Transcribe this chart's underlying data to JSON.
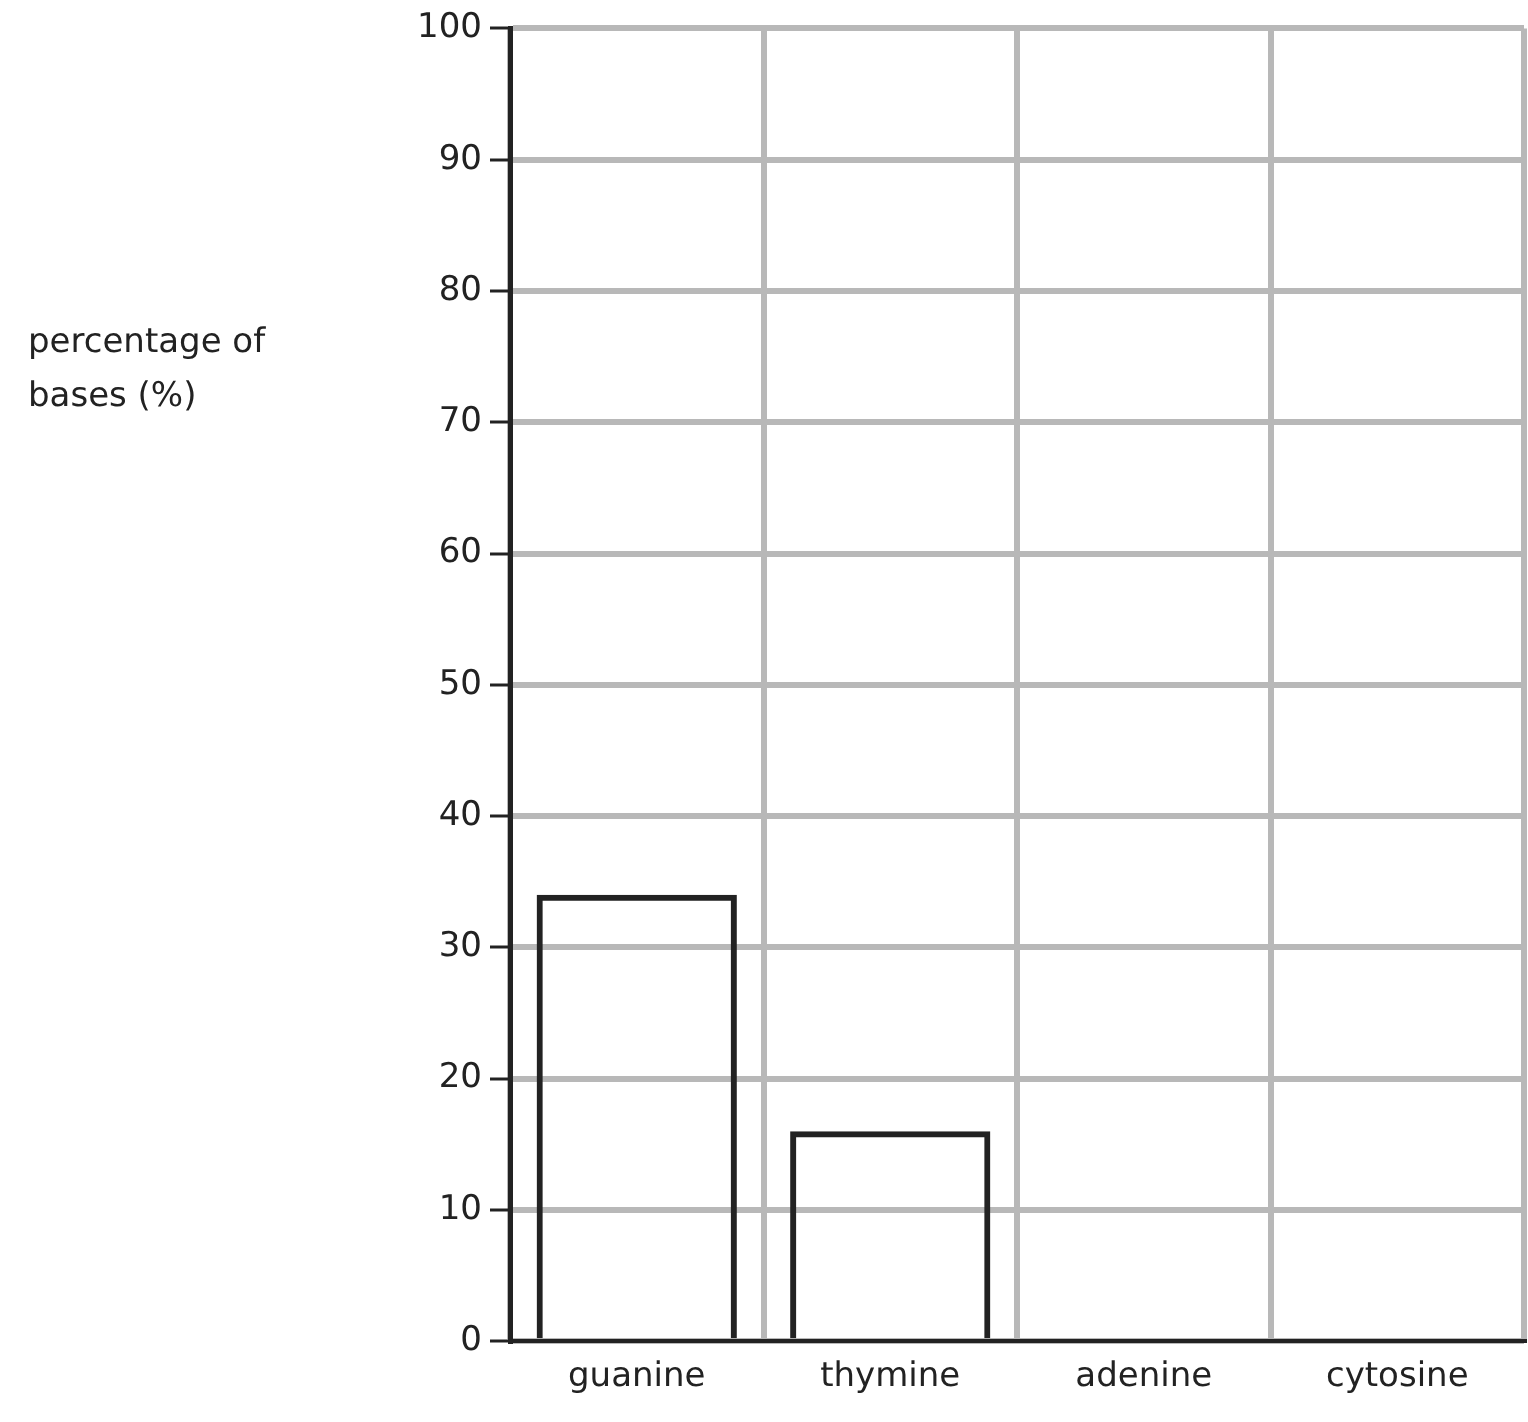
{
  "chart_data": {
    "type": "bar",
    "ylabel": "percentage of bases (%)",
    "categories": [
      "guanine",
      "thymine",
      "adenine",
      "cytosine"
    ],
    "values": [
      34,
      16,
      null,
      null
    ],
    "color": "#222222",
    "ylim": [
      0,
      100
    ],
    "yticks": [
      0,
      10,
      20,
      30,
      40,
      50,
      60,
      70,
      80,
      90,
      100
    ],
    "grid": true
  }
}
